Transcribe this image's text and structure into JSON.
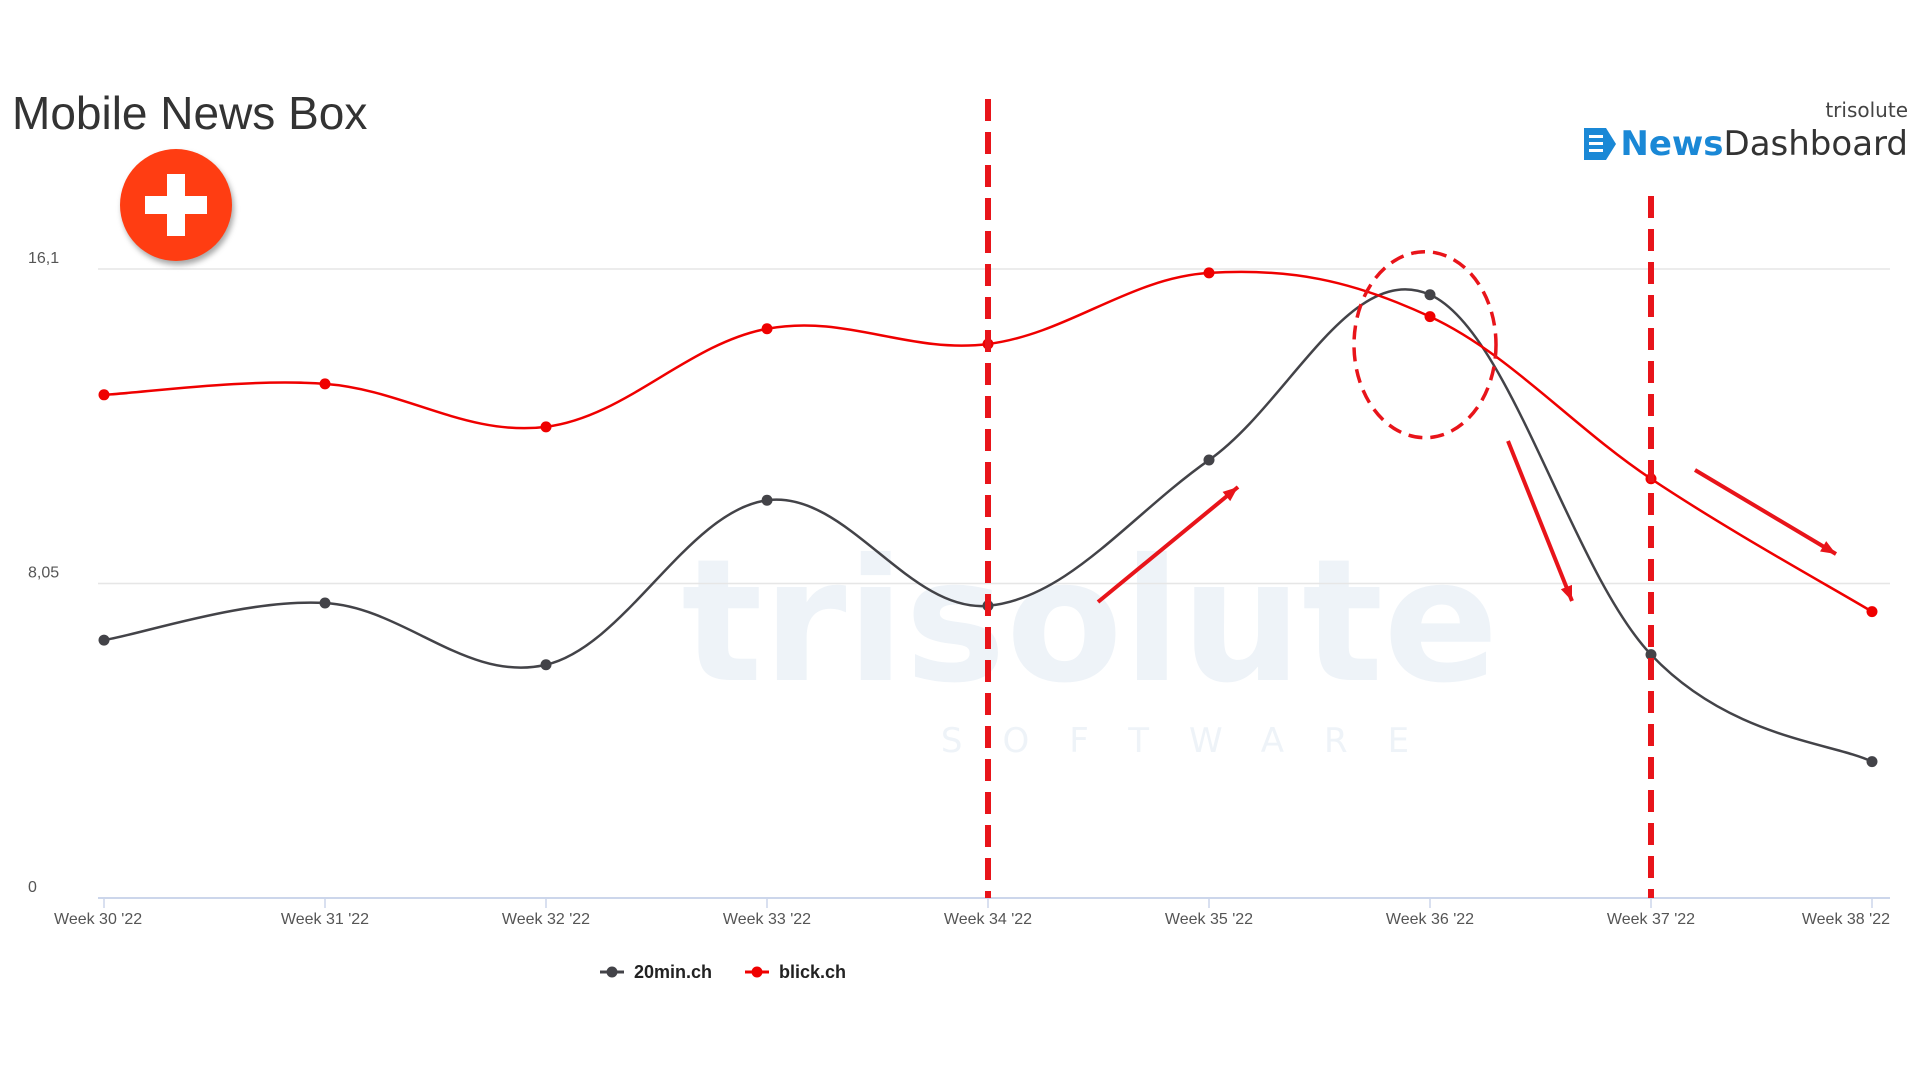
{
  "header": {
    "title": "Mobile News Box",
    "badge_icon": "swiss-cross-icon"
  },
  "brand": {
    "company": "trisolute",
    "product_part1": "News",
    "product_part2": "Dashboard"
  },
  "watermark": {
    "main": "trisolute",
    "sub": "SOFTWARE"
  },
  "chart_data": {
    "type": "line",
    "categories": [
      "Week 30 '22",
      "Week 31 '22",
      "Week 32 '22",
      "Week 33 '22",
      "Week 34 '22",
      "Week 35 '22",
      "Week 36 '22",
      "Week 37 '22",
      "Week 38 '22"
    ],
    "yticks": [
      0,
      8.05,
      16.1
    ],
    "ytick_labels": [
      "0",
      "8,05",
      "16,1"
    ],
    "ylim": [
      0,
      16.1
    ],
    "grid": true,
    "legend": "bottom-center",
    "series": [
      {
        "name": "20min.ch",
        "color": "#434348",
        "values": [
          6.6,
          7.55,
          5.97,
          10.18,
          7.48,
          11.21,
          15.44,
          6.23,
          3.49
        ]
      },
      {
        "name": "blick.ch",
        "color": "#ef0000",
        "values": [
          12.88,
          13.16,
          12.06,
          14.57,
          14.18,
          16.0,
          14.88,
          10.73,
          7.33
        ]
      }
    ],
    "annotations": {
      "vertical_dashed_lines_at": [
        "Week 34 '22",
        "Week 37 '22"
      ],
      "circle_around": "Week 36 '22",
      "line_color": "#e8141a"
    }
  }
}
